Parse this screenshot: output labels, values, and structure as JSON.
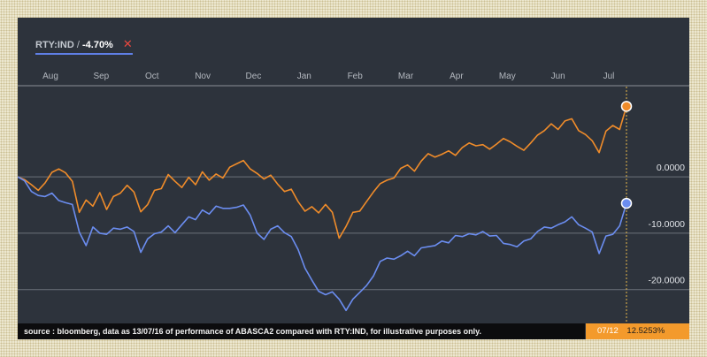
{
  "legend": {
    "symbol": "RTY:IND",
    "separator": "/",
    "change": "-4.70%",
    "close_glyph": "✕"
  },
  "footer": {
    "source_text": "source : bloomberg, data as 13/07/16 of performance of ABASCA2 compared with RTY:IND, for illustrative purposes only."
  },
  "readout": {
    "date": "07/12",
    "value": "12.5253%"
  },
  "colors": {
    "series_orange": "#f08c2a",
    "series_blue": "#6b8df0"
  },
  "chart_data": {
    "type": "line",
    "x_axis_labels": [
      "Aug",
      "Sep",
      "Oct",
      "Nov",
      "Dec",
      "Jan",
      "Feb",
      "Mar",
      "Apr",
      "May",
      "Jun",
      "Jul"
    ],
    "y_tick_labels": [
      "0.0000",
      "-10.0000",
      "-20.0000"
    ],
    "y_ticks": [
      0,
      -10,
      -20
    ],
    "ylim": [
      -26,
      16
    ],
    "grid": true,
    "series": [
      {
        "color": "#f08c2a",
        "values": [
          0,
          -0.5,
          -1.4,
          -2.4,
          -1.1,
          0.8,
          1.4,
          0.7,
          -0.8,
          -6.3,
          -4.1,
          -5.2,
          -2.8,
          -5.8,
          -3.5,
          -2.9,
          -1.5,
          -2.7,
          -6.2,
          -4.9,
          -2.4,
          -2.1,
          0.4,
          -0.8,
          -1.9,
          -0.1,
          -1.4,
          0.9,
          -0.6,
          0.5,
          -0.2,
          1.7,
          2.3,
          2.9,
          1.4,
          0.6,
          -0.4,
          0.3,
          -1.3,
          -2.6,
          -2.2,
          -4.4,
          -6.1,
          -5.3,
          -6.4,
          -4.9,
          -6.3,
          -10.9,
          -8.8,
          -6.3,
          -6.1,
          -4.4,
          -2.7,
          -1.2,
          -0.6,
          -0.2,
          1.5,
          2.1,
          1.0,
          2.8,
          4.1,
          3.5,
          4.0,
          4.6,
          3.8,
          5.2,
          6.0,
          5.5,
          5.7,
          4.9,
          5.8,
          6.8,
          6.2,
          5.4,
          4.7,
          6.0,
          7.4,
          8.2,
          9.4,
          8.4,
          9.9,
          10.3,
          8.2,
          7.5,
          6.4,
          4.3,
          8.1,
          9.1,
          8.4,
          12.5
        ]
      },
      {
        "color": "#6b8df0",
        "values": [
          0,
          -0.7,
          -2.6,
          -3.3,
          -3.5,
          -2.9,
          -4.2,
          -4.6,
          -4.9,
          -9.8,
          -12.2,
          -8.9,
          -10.0,
          -10.2,
          -9.1,
          -9.3,
          -8.9,
          -9.7,
          -13.4,
          -11.0,
          -10.1,
          -9.8,
          -8.7,
          -9.9,
          -8.5,
          -7.1,
          -7.6,
          -5.9,
          -6.6,
          -5.2,
          -5.6,
          -5.6,
          -5.4,
          -5.0,
          -6.8,
          -10.0,
          -11.1,
          -9.3,
          -8.7,
          -9.9,
          -10.6,
          -12.9,
          -16.2,
          -18.3,
          -20.3,
          -20.9,
          -20.4,
          -21.7,
          -23.7,
          -21.7,
          -20.5,
          -19.3,
          -17.6,
          -15.0,
          -14.4,
          -14.6,
          -14.0,
          -13.2,
          -14.0,
          -12.6,
          -12.4,
          -12.2,
          -11.4,
          -11.7,
          -10.4,
          -10.6,
          -10.1,
          -10.3,
          -9.7,
          -10.5,
          -10.4,
          -11.8,
          -12.0,
          -12.4,
          -11.4,
          -11.0,
          -9.7,
          -8.9,
          -9.1,
          -8.5,
          -8.0,
          -7.1,
          -8.5,
          -9.1,
          -9.8,
          -13.6,
          -10.5,
          -10.2,
          -8.7,
          -4.7
        ]
      }
    ]
  }
}
